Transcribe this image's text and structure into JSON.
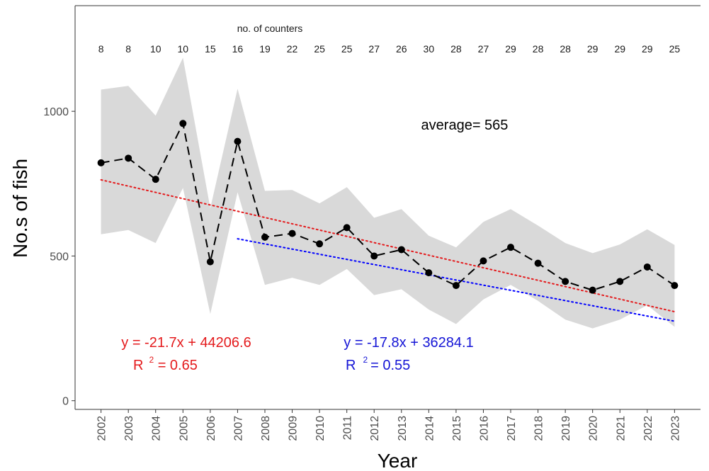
{
  "chart_data": {
    "type": "line",
    "xlabel": "Year",
    "ylabel": "No.s of fish",
    "xlim": [
      2001.05,
      2023.95
    ],
    "ylim": [
      -30,
      1365
    ],
    "y_ticks": [
      0,
      500,
      1000
    ],
    "grid": false,
    "counters_title": "no. of counters",
    "x": [
      2002,
      2003,
      2004,
      2005,
      2006,
      2007,
      2008,
      2009,
      2010,
      2011,
      2012,
      2013,
      2014,
      2015,
      2016,
      2017,
      2018,
      2019,
      2020,
      2021,
      2022,
      2023
    ],
    "x_labels": [
      "2002",
      "2003",
      "2004",
      "2005",
      "2006",
      "2007",
      "2008",
      "2009",
      "2010",
      "2011",
      "2012",
      "2013",
      "2014",
      "2015",
      "2016",
      "2017",
      "2018",
      "2019",
      "2020",
      "2021",
      "2022",
      "2023"
    ],
    "counters": [
      "8",
      "8",
      "10",
      "10",
      "15",
      "16",
      "19",
      "22",
      "25",
      "25",
      "27",
      "26",
      "30",
      "28",
      "27",
      "29",
      "28",
      "28",
      "29",
      "29",
      "29",
      "25"
    ],
    "series": [
      {
        "values": [
          822,
          838,
          765,
          958,
          480,
          896,
          565,
          578,
          542,
          598,
          500,
          522,
          442,
          398,
          483,
          530,
          475,
          412,
          382,
          412,
          462,
          398
        ],
        "lower": [
          575,
          590,
          545,
          735,
          300,
          720,
          400,
          425,
          400,
          455,
          365,
          385,
          315,
          265,
          350,
          400,
          345,
          280,
          250,
          280,
          330,
          255
        ],
        "upper": [
          1075,
          1088,
          985,
          1185,
          665,
          1078,
          725,
          728,
          682,
          738,
          632,
          662,
          570,
          530,
          618,
          662,
          605,
          545,
          510,
          540,
          592,
          538
        ],
        "color": "#000000",
        "band_color": "#d9d9d9"
      }
    ],
    "trendlines": [
      {
        "x_start": 2002,
        "x_end": 2023,
        "slope": -21.7,
        "intercept": 44206.6,
        "color": "#e41a1c"
      },
      {
        "x_start": 2007,
        "x_end": 2023,
        "slope": -17.8,
        "intercept": 36284.1,
        "color": "#0000ff"
      }
    ],
    "annotations": {
      "average": "average= 565",
      "red_equation": "y = -21.7x + 44206.6",
      "red_r_prefix": "R",
      "red_r_sup": "2",
      "red_r_value": " = 0.65",
      "blue_equation": "y = -17.8x + 36284.1",
      "blue_r_prefix": "R",
      "blue_r_sup": "2",
      "blue_r_value": "= 0.55"
    },
    "colors": {
      "red": "#e41a1c",
      "blue": "#1515d6",
      "axis": "#333333"
    }
  }
}
